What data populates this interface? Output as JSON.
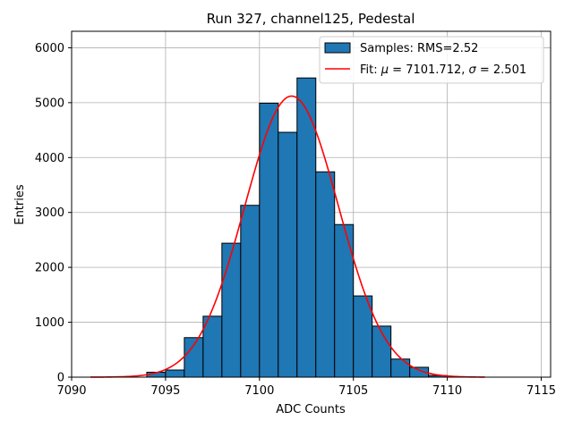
{
  "chart_data": {
    "type": "bar",
    "title": "Run 327, channel125, Pedestal",
    "xlabel": "ADC Counts",
    "ylabel": "Entries",
    "xlim": [
      7090,
      7115.5
    ],
    "ylim": [
      0,
      6300
    ],
    "xticks": [
      7090,
      7095,
      7100,
      7105,
      7110,
      7115
    ],
    "yticks": [
      0,
      1000,
      2000,
      3000,
      4000,
      5000,
      6000
    ],
    "grid": true,
    "legend_position": "top-right",
    "colors": {
      "bars": "#1f77b4",
      "bar_edge": "#000000",
      "fit": "#ff0000",
      "grid": "#b0b0b0"
    },
    "bins": [
      {
        "x0": 7094,
        "x1": 7095,
        "value": 90
      },
      {
        "x0": 7095,
        "x1": 7096,
        "value": 130
      },
      {
        "x0": 7096,
        "x1": 7097,
        "value": 720
      },
      {
        "x0": 7097,
        "x1": 7098,
        "value": 1110
      },
      {
        "x0": 7098,
        "x1": 7099,
        "value": 2440
      },
      {
        "x0": 7099,
        "x1": 7100,
        "value": 3130
      },
      {
        "x0": 7100,
        "x1": 7101,
        "value": 4990
      },
      {
        "x0": 7101,
        "x1": 7102,
        "value": 4460
      },
      {
        "x0": 7102,
        "x1": 7103,
        "value": 5450
      },
      {
        "x0": 7103,
        "x1": 7104,
        "value": 3740
      },
      {
        "x0": 7104,
        "x1": 7105,
        "value": 2780
      },
      {
        "x0": 7105,
        "x1": 7106,
        "value": 1480
      },
      {
        "x0": 7106,
        "x1": 7107,
        "value": 930
      },
      {
        "x0": 7107,
        "x1": 7108,
        "value": 330
      },
      {
        "x0": 7108,
        "x1": 7109,
        "value": 180
      },
      {
        "x0": 7109,
        "x1": 7110,
        "value": 30
      }
    ],
    "fit": {
      "mu": 7101.712,
      "sigma": 2.501,
      "peak": 5120,
      "x_range": [
        7091,
        7112
      ]
    },
    "legend": [
      {
        "kind": "bar",
        "label": "Samples: RMS=2.52"
      },
      {
        "kind": "line",
        "label_prefix": "Fit: ",
        "mu_symbol": "μ",
        "mu_text": " = 7101.712, ",
        "sigma_symbol": "σ",
        "sigma_text": " = 2.501"
      }
    ]
  }
}
